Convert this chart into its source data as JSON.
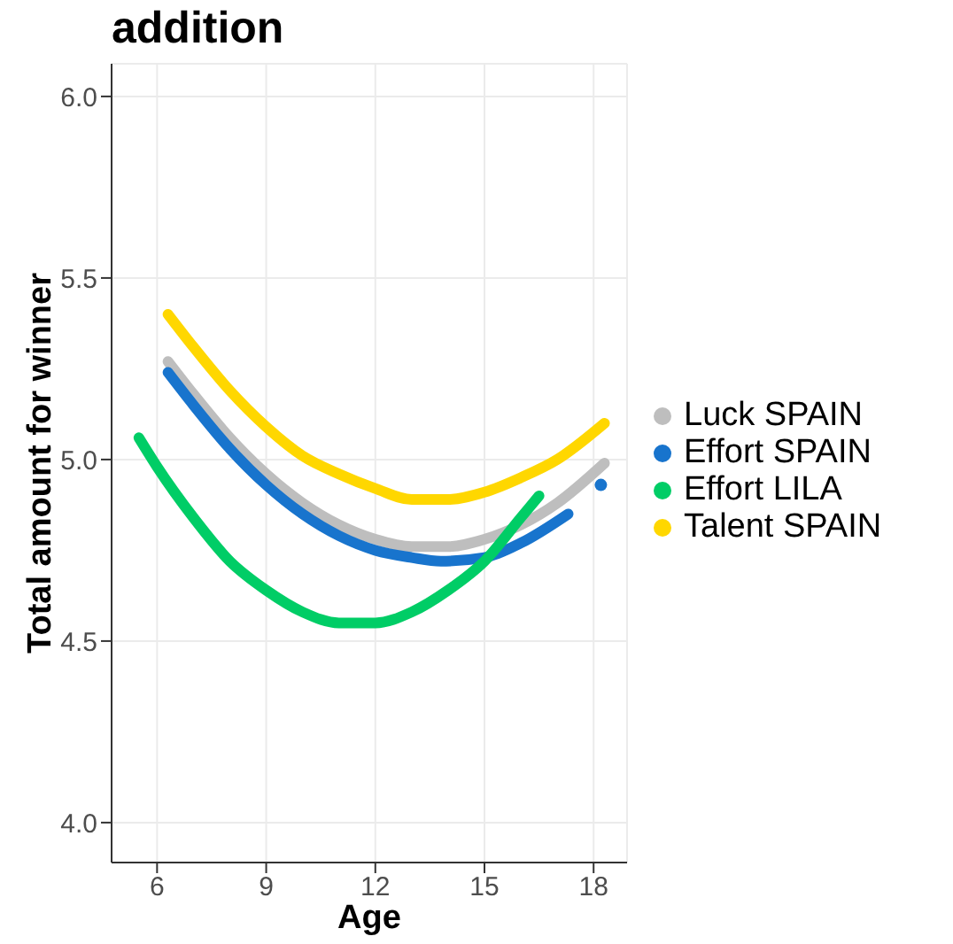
{
  "chart_data": {
    "type": "line",
    "title": "addition",
    "xlabel": "Age",
    "ylabel": "Total amount for winner",
    "xlim": [
      4.75,
      18.92
    ],
    "xticks": [
      6,
      9,
      12,
      15,
      18
    ],
    "ylim": [
      3.89,
      6.09
    ],
    "yticks": [
      {
        "value": 4,
        "label": "4.0"
      },
      {
        "value": 4.5,
        "label": "4.5"
      },
      {
        "value": 5,
        "label": "5.0"
      },
      {
        "value": 5.5,
        "label": "5.5"
      },
      {
        "value": 6,
        "label": "6.0"
      }
    ],
    "grid": true,
    "legend": "right",
    "marker": "none",
    "line_style": "solid",
    "series": [
      {
        "name": "Luck SPAIN",
        "color": "#bebebe",
        "x": [
          6.3,
          7,
          8,
          9,
          10,
          11,
          12,
          13,
          13.5,
          14,
          15,
          16,
          17,
          18.3
        ],
        "values": [
          5.27,
          5.18,
          5.06,
          4.96,
          4.88,
          4.82,
          4.78,
          4.76,
          4.76,
          4.76,
          4.78,
          4.82,
          4.88,
          4.99
        ]
      },
      {
        "name": "Effort SPAIN",
        "color": "#1874cd",
        "x": [
          6.3,
          7,
          8,
          9,
          10,
          11,
          12,
          13,
          13.8,
          15,
          16,
          17.3,
          17.7,
          18.2
        ],
        "values": [
          5.24,
          5.15,
          5.03,
          4.93,
          4.85,
          4.79,
          4.75,
          4.73,
          4.72,
          4.73,
          4.77,
          4.85,
          null,
          4.93
        ]
      },
      {
        "name": "Effort LILA",
        "color": "#00cd66",
        "x": [
          5.5,
          6,
          7,
          8,
          9,
          10,
          11,
          11.5,
          12,
          13,
          14,
          15,
          16,
          16.5
        ],
        "values": [
          5.06,
          4.98,
          4.84,
          4.72,
          4.64,
          4.58,
          4.55,
          4.55,
          4.55,
          4.58,
          4.64,
          4.72,
          4.84,
          4.9
        ]
      },
      {
        "name": "Talent SPAIN",
        "color": "#ffd700",
        "x": [
          6.3,
          7,
          8,
          9,
          10,
          11,
          12,
          13,
          13.6,
          14,
          15,
          16,
          17,
          18.3
        ],
        "values": [
          5.4,
          5.31,
          5.19,
          5.09,
          5.01,
          4.96,
          4.92,
          4.89,
          4.89,
          4.89,
          4.91,
          4.95,
          5.0,
          5.1
        ]
      }
    ]
  }
}
